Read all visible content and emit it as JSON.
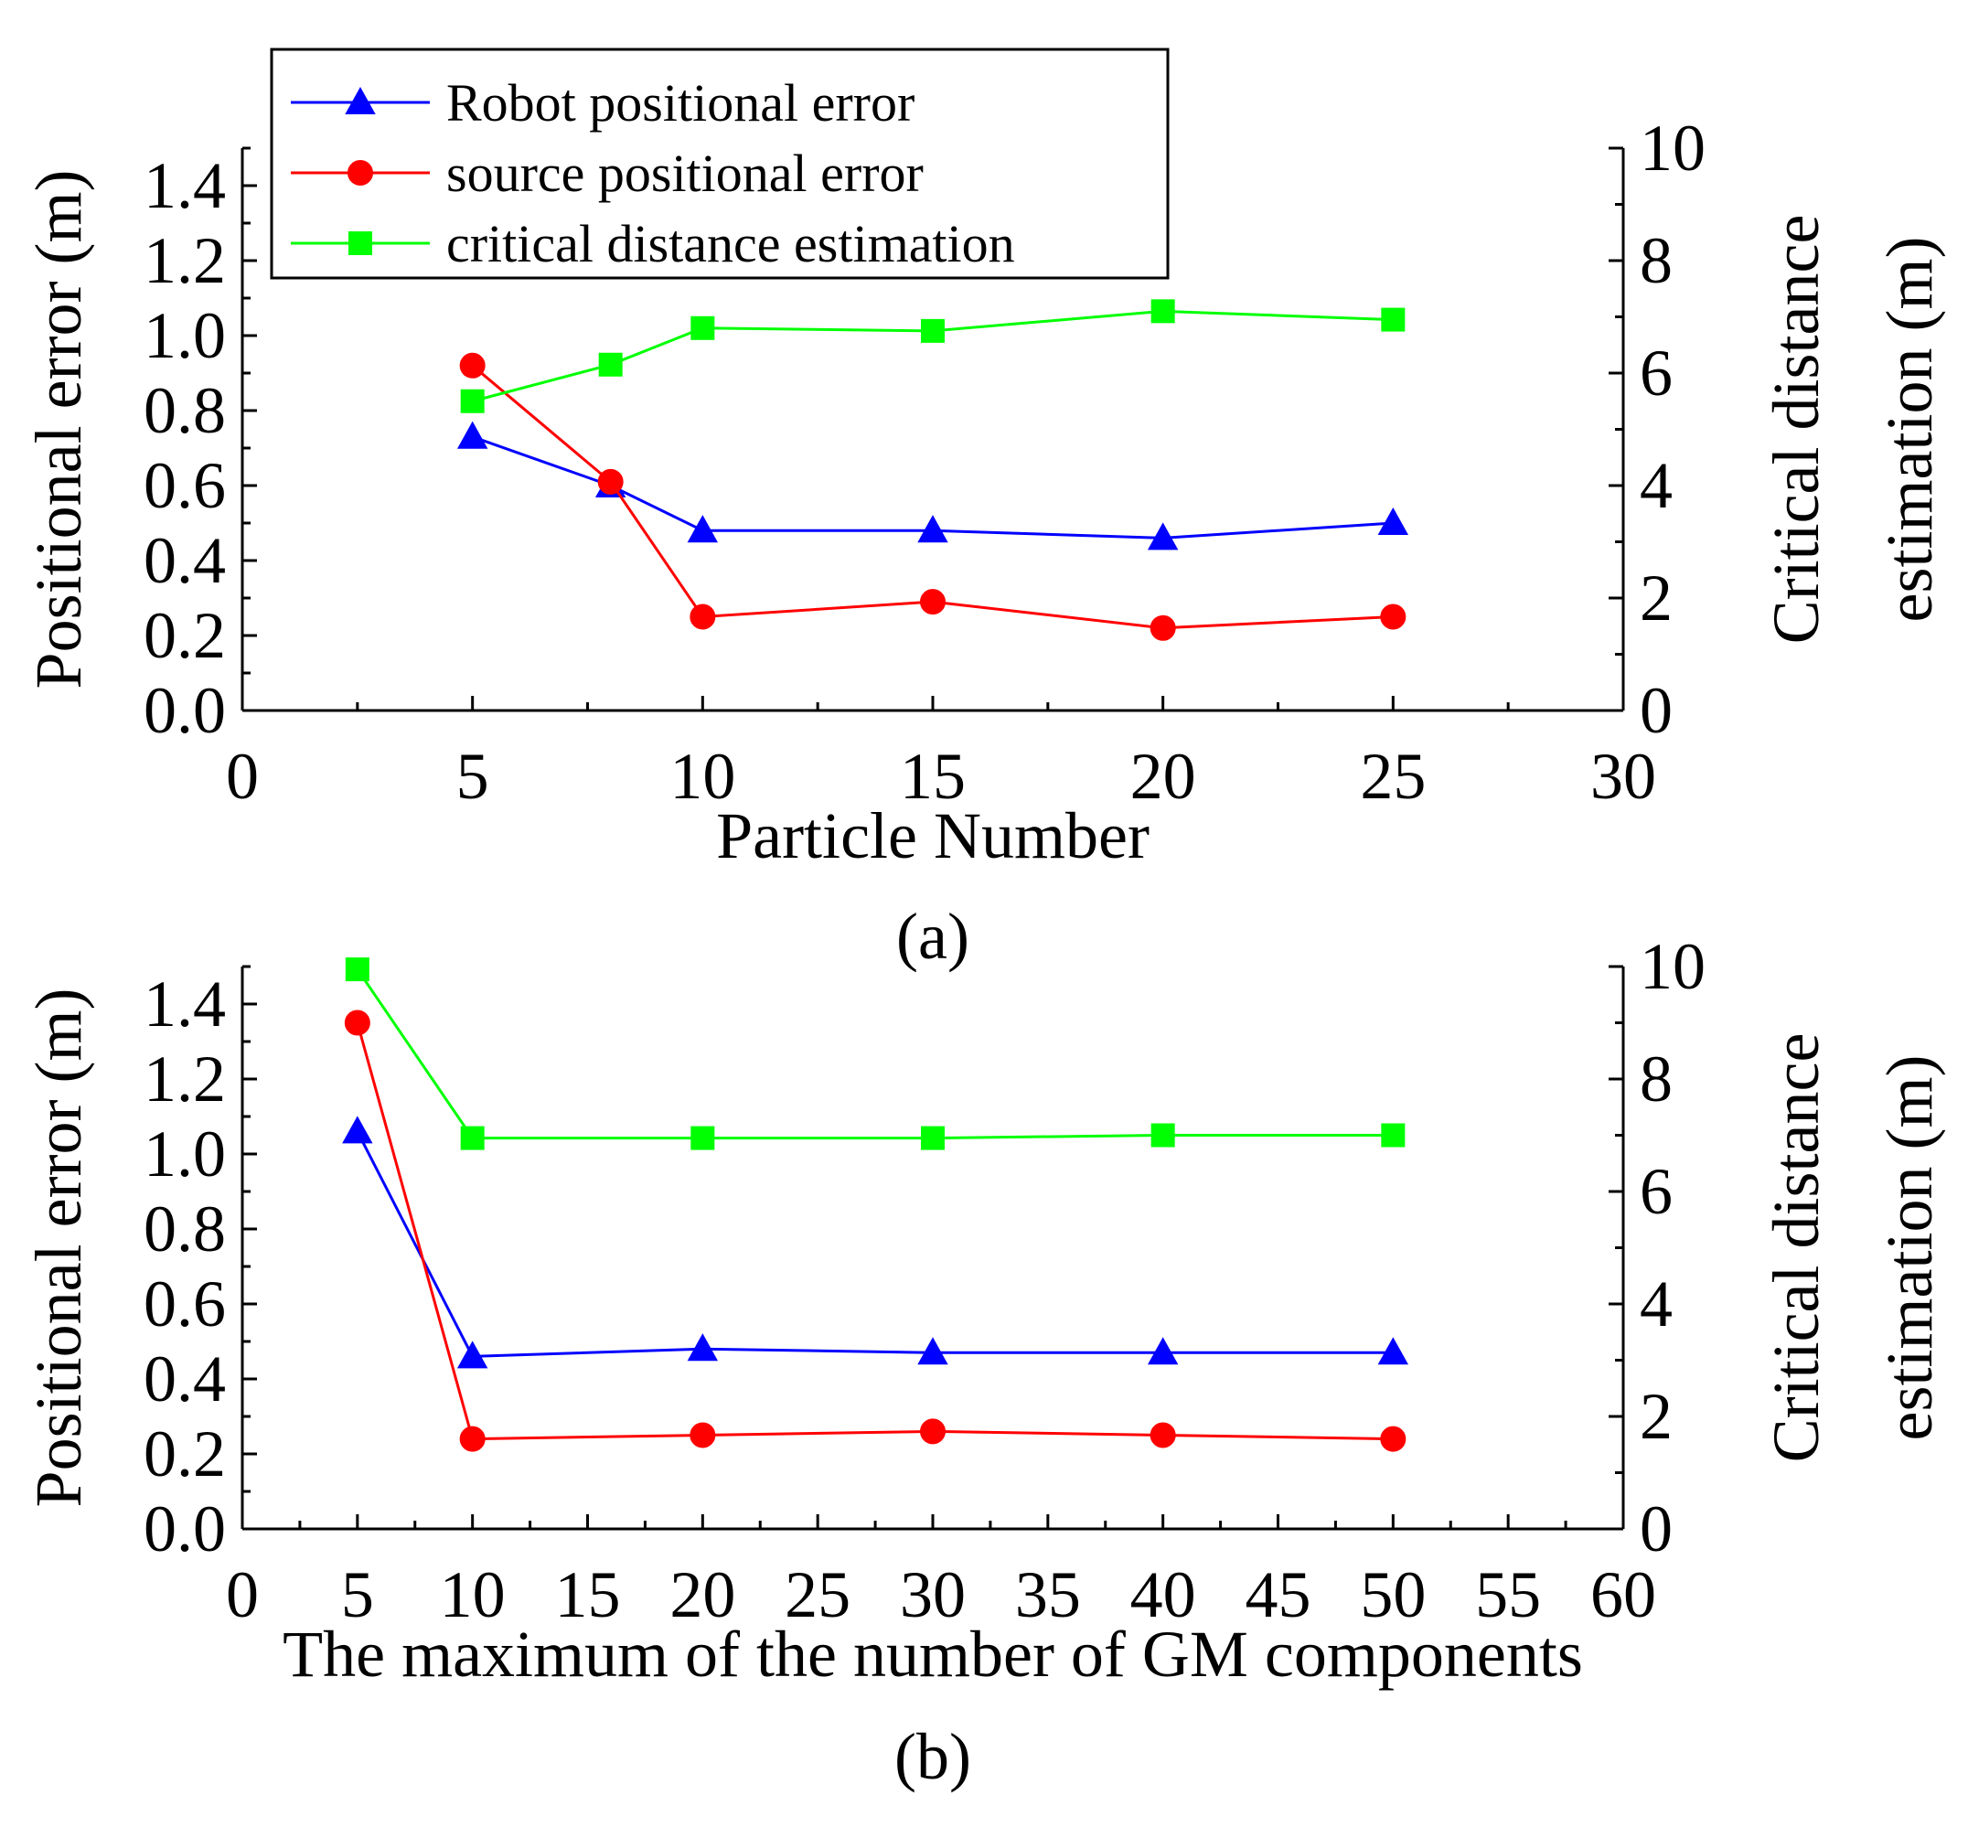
{
  "chart_data": [
    {
      "id": "a",
      "type": "line",
      "panel_label": "(a)",
      "xlabel": "Particle Number",
      "ylabel_left": "Positional error (m)",
      "ylabel_right_line1": "Critical distance",
      "ylabel_right_line2": "estimation (m)",
      "xlim": [
        0,
        30
      ],
      "xticks": [
        0,
        5,
        10,
        15,
        20,
        25,
        30
      ],
      "xtick_labels": [
        "0",
        "5",
        "10",
        "15",
        "20",
        "25",
        "30"
      ],
      "ylim_left": [
        0,
        1.5
      ],
      "yticks_left": [
        0.0,
        0.2,
        0.4,
        0.6,
        0.8,
        1.0,
        1.2,
        1.4
      ],
      "ytick_labels_left": [
        "0.0",
        "0.2",
        "0.4",
        "0.6",
        "0.8",
        "1.0",
        "1.2",
        "1.4"
      ],
      "ylim_right": [
        0,
        10
      ],
      "yticks_right": [
        0,
        2,
        4,
        6,
        8,
        10
      ],
      "ytick_labels_right": [
        "0",
        "2",
        "4",
        "6",
        "8",
        "10"
      ],
      "x": [
        5,
        8,
        10,
        15,
        20,
        25
      ],
      "series": [
        {
          "name": "Robot positional error",
          "axis": "left",
          "marker": "triangle",
          "color": "#0000ff",
          "values": [
            0.73,
            0.6,
            0.48,
            0.48,
            0.46,
            0.5
          ]
        },
        {
          "name": "source positional error",
          "axis": "left",
          "marker": "circle",
          "color": "#ff0000",
          "values": [
            0.92,
            0.61,
            0.25,
            0.29,
            0.22,
            0.25
          ]
        },
        {
          "name": "critical distance estimation",
          "axis": "right",
          "marker": "square",
          "color": "#00ff00",
          "values": [
            5.5,
            6.15,
            6.8,
            6.75,
            7.1,
            6.95
          ]
        }
      ],
      "legend": {
        "position": "top-left",
        "entries": [
          "Robot positional error",
          "source positional error",
          "critical distance estimation"
        ]
      }
    },
    {
      "id": "b",
      "type": "line",
      "panel_label": "(b)",
      "xlabel": "The maximum of the number of GM components",
      "ylabel_left": "Positional error (m)",
      "ylabel_right_line1": "Critical distance",
      "ylabel_right_line2": "estimation (m)",
      "xlim": [
        0,
        60
      ],
      "xticks": [
        0,
        5,
        10,
        15,
        20,
        25,
        30,
        35,
        40,
        45,
        50,
        55,
        60
      ],
      "xtick_labels": [
        "0",
        "5",
        "10",
        "15",
        "20",
        "25",
        "30",
        "35",
        "40",
        "45",
        "50",
        "55",
        "60"
      ],
      "ylim_left": [
        0,
        1.5
      ],
      "yticks_left": [
        0.0,
        0.2,
        0.4,
        0.6,
        0.8,
        1.0,
        1.2,
        1.4
      ],
      "ytick_labels_left": [
        "0.0",
        "0.2",
        "0.4",
        "0.6",
        "0.8",
        "1.0",
        "1.2",
        "1.4"
      ],
      "ylim_right": [
        0,
        10
      ],
      "yticks_right": [
        0,
        2,
        4,
        6,
        8,
        10
      ],
      "ytick_labels_right": [
        "0",
        "2",
        "4",
        "6",
        "8",
        "10"
      ],
      "x": [
        5,
        10,
        20,
        30,
        40,
        50
      ],
      "series": [
        {
          "name": "Robot positional error",
          "axis": "left",
          "marker": "triangle",
          "color": "#0000ff",
          "values": [
            1.06,
            0.46,
            0.48,
            0.47,
            0.47,
            0.47
          ]
        },
        {
          "name": "source positional error",
          "axis": "left",
          "marker": "circle",
          "color": "#ff0000",
          "values": [
            1.35,
            0.24,
            0.25,
            0.26,
            0.25,
            0.24
          ]
        },
        {
          "name": "critical distance estimation",
          "axis": "right",
          "marker": "square",
          "color": "#00ff00",
          "values": [
            9.95,
            6.95,
            6.95,
            6.95,
            7.0,
            7.0
          ]
        }
      ]
    }
  ]
}
